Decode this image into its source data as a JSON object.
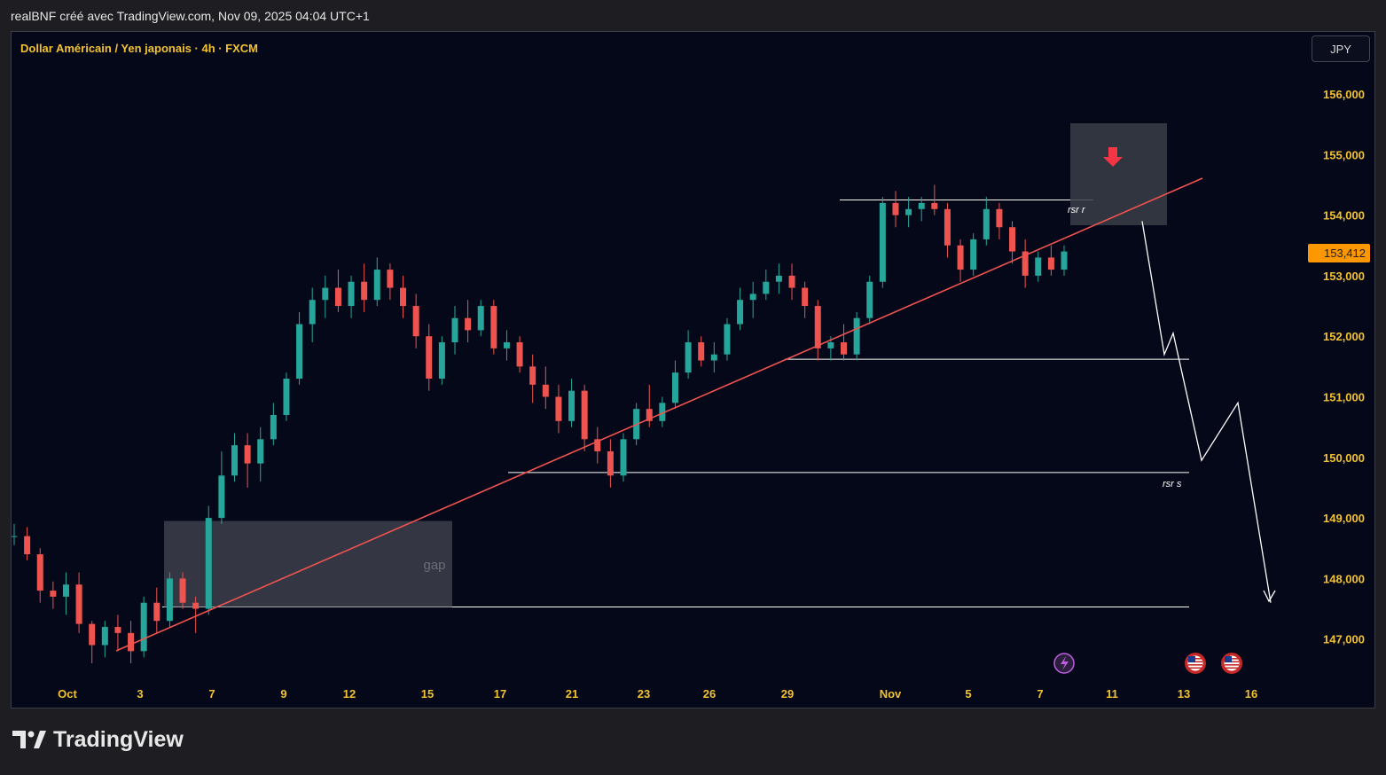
{
  "header": {
    "attribution": "realBNF créé avec TradingView.com, Nov 09, 2025 04:04 UTC+1"
  },
  "brand": {
    "name": "TradingView",
    "icon": "tradingview-logo-icon"
  },
  "chart_data": {
    "type": "candlestick",
    "title": "Dollar Américain / Yen japonais · 4h · FXCM",
    "currency": "JPY",
    "current_price_label": "153,412",
    "y_ticks": [
      "147,000",
      "148,000",
      "149,000",
      "150,000",
      "151,000",
      "152,000",
      "153,000",
      "154,000",
      "155,000",
      "156,000"
    ],
    "x_ticks": [
      "Oct",
      "3",
      "7",
      "9",
      "12",
      "15",
      "17",
      "21",
      "23",
      "26",
      "29",
      "Nov",
      "5",
      "7",
      "11",
      "13",
      "16"
    ],
    "ylim": [
      146.4,
      156.3
    ],
    "colors": {
      "up": "#26a69a",
      "down": "#ef5350",
      "trendline": "#ef5350",
      "annotation": "#ffffff",
      "zone": "#3a3d48",
      "price_tag": "#ff9800",
      "axis_text": "#f2c230"
    },
    "annotations": {
      "zone_gap_label": "gap",
      "resistance_label": "rsr r",
      "support_label": "rsr s"
    },
    "levels": {
      "resistance": 154.25,
      "mid_support": 151.62,
      "support": 149.75,
      "gap_low": 147.53,
      "gap_high": 148.95
    },
    "trendline": {
      "from": [
        "Sep 30",
        146.8
      ],
      "to": [
        "Nov 13",
        154.6
      ]
    },
    "projection": [
      153.9,
      151.7,
      152.05,
      149.95,
      150.9,
      147.6
    ],
    "series": {
      "candles_approx": [
        [
          148.7,
          148.9,
          148.55,
          148.7
        ],
        [
          148.7,
          148.85,
          148.3,
          148.4
        ],
        [
          148.4,
          148.5,
          147.6,
          147.8
        ],
        [
          147.8,
          147.95,
          147.5,
          147.7
        ],
        [
          147.7,
          148.1,
          147.4,
          147.9
        ],
        [
          147.9,
          148.1,
          147.1,
          147.25
        ],
        [
          147.25,
          147.3,
          146.6,
          146.9
        ],
        [
          146.9,
          147.3,
          146.7,
          147.2
        ],
        [
          147.2,
          147.4,
          146.8,
          147.1
        ],
        [
          147.1,
          147.3,
          146.6,
          146.8
        ],
        [
          146.8,
          147.7,
          146.7,
          147.6
        ],
        [
          147.6,
          147.85,
          147.1,
          147.3
        ],
        [
          147.3,
          148.1,
          147.2,
          148.0
        ],
        [
          148.0,
          148.1,
          147.5,
          147.6
        ],
        [
          147.6,
          147.7,
          147.1,
          147.5
        ],
        [
          147.5,
          149.2,
          147.4,
          149.0
        ],
        [
          149.0,
          150.1,
          148.9,
          149.7
        ],
        [
          149.7,
          150.4,
          149.6,
          150.2
        ],
        [
          150.2,
          150.4,
          149.5,
          149.9
        ],
        [
          149.9,
          150.5,
          149.6,
          150.3
        ],
        [
          150.3,
          150.9,
          150.2,
          150.7
        ],
        [
          150.7,
          151.4,
          150.6,
          151.3
        ],
        [
          151.3,
          152.4,
          151.2,
          152.2
        ],
        [
          152.2,
          152.8,
          151.9,
          152.6
        ],
        [
          152.6,
          153.0,
          152.3,
          152.8
        ],
        [
          152.8,
          153.1,
          152.4,
          152.5
        ],
        [
          152.5,
          153.0,
          152.3,
          152.9
        ],
        [
          152.9,
          153.2,
          152.4,
          152.6
        ],
        [
          152.6,
          153.3,
          152.5,
          153.1
        ],
        [
          153.1,
          153.2,
          152.6,
          152.8
        ],
        [
          152.8,
          153.0,
          152.3,
          152.5
        ],
        [
          152.5,
          152.7,
          151.8,
          152.0
        ],
        [
          152.0,
          152.2,
          151.1,
          151.3
        ],
        [
          151.3,
          152.0,
          151.2,
          151.9
        ],
        [
          151.9,
          152.5,
          151.7,
          152.3
        ],
        [
          152.3,
          152.6,
          151.9,
          152.1
        ],
        [
          152.1,
          152.6,
          152.0,
          152.5
        ],
        [
          152.5,
          152.6,
          151.7,
          151.8
        ],
        [
          151.8,
          152.1,
          151.6,
          151.9
        ],
        [
          151.9,
          152.0,
          151.4,
          151.5
        ],
        [
          151.5,
          151.7,
          150.9,
          151.2
        ],
        [
          151.2,
          151.5,
          150.8,
          151.0
        ],
        [
          151.0,
          151.2,
          150.4,
          150.6
        ],
        [
          150.6,
          151.3,
          150.5,
          151.1
        ],
        [
          151.1,
          151.2,
          150.1,
          150.3
        ],
        [
          150.3,
          150.5,
          149.9,
          150.1
        ],
        [
          150.1,
          150.3,
          149.5,
          149.7
        ],
        [
          149.7,
          150.4,
          149.6,
          150.3
        ],
        [
          150.3,
          150.9,
          150.2,
          150.8
        ],
        [
          150.8,
          151.2,
          150.5,
          150.6
        ],
        [
          150.6,
          151.0,
          150.5,
          150.9
        ],
        [
          150.9,
          151.6,
          150.8,
          151.4
        ],
        [
          151.4,
          152.1,
          151.3,
          151.9
        ],
        [
          151.9,
          152.0,
          151.5,
          151.6
        ],
        [
          151.6,
          151.9,
          151.4,
          151.7
        ],
        [
          151.7,
          152.3,
          151.6,
          152.2
        ],
        [
          152.2,
          152.8,
          152.1,
          152.6
        ],
        [
          152.6,
          152.9,
          152.3,
          152.7
        ],
        [
          152.7,
          153.1,
          152.6,
          152.9
        ],
        [
          152.9,
          153.2,
          152.7,
          153.0
        ],
        [
          153.0,
          153.2,
          152.6,
          152.8
        ],
        [
          152.8,
          152.9,
          152.3,
          152.5
        ],
        [
          152.5,
          152.6,
          151.6,
          151.8
        ],
        [
          151.8,
          152.0,
          151.6,
          151.9
        ],
        [
          151.9,
          152.2,
          151.6,
          151.7
        ],
        [
          151.7,
          152.4,
          151.6,
          152.3
        ],
        [
          152.3,
          153.0,
          152.2,
          152.9
        ],
        [
          152.9,
          154.3,
          152.8,
          154.2
        ],
        [
          154.2,
          154.4,
          153.8,
          154.0
        ],
        [
          154.0,
          154.3,
          153.8,
          154.1
        ],
        [
          154.1,
          154.3,
          153.9,
          154.2
        ],
        [
          154.2,
          154.5,
          154.0,
          154.1
        ],
        [
          154.1,
          154.2,
          153.3,
          153.5
        ],
        [
          153.5,
          153.6,
          152.9,
          153.1
        ],
        [
          153.1,
          153.7,
          153.0,
          153.6
        ],
        [
          153.6,
          154.3,
          153.5,
          154.1
        ],
        [
          154.1,
          154.2,
          153.6,
          153.8
        ],
        [
          153.8,
          153.9,
          153.2,
          153.4
        ],
        [
          153.4,
          153.6,
          152.8,
          153.0
        ],
        [
          153.0,
          153.4,
          152.9,
          153.3
        ],
        [
          153.3,
          153.5,
          153.0,
          153.1
        ],
        [
          153.1,
          153.5,
          153.0,
          153.4
        ]
      ]
    }
  }
}
